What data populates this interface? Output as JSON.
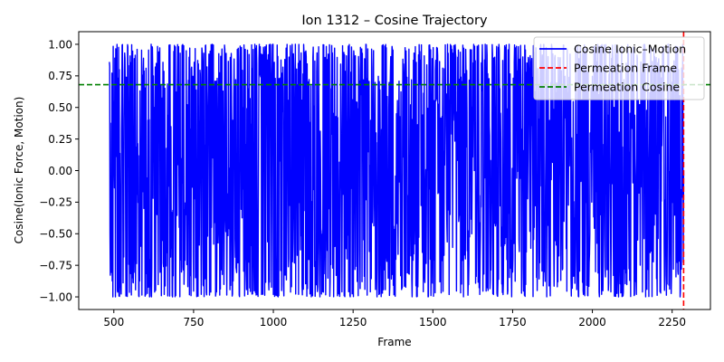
{
  "chart_data": {
    "type": "line",
    "title": "Ion 1312 – Cosine Trajectory",
    "xlabel": "Frame",
    "ylabel": "Cosine(Ionic Force, Motion)",
    "xlim": [
      390,
      2370
    ],
    "ylim": [
      -1.1,
      1.1
    ],
    "xticks": [
      500,
      750,
      1000,
      1250,
      1500,
      1750,
      2000,
      2250
    ],
    "xtick_labels": [
      "500",
      "750",
      "1000",
      "1250",
      "1500",
      "1750",
      "2000",
      "2250"
    ],
    "yticks": [
      -1.0,
      -0.75,
      -0.5,
      -0.25,
      0.0,
      0.25,
      0.5,
      0.75,
      1.0
    ],
    "ytick_labels": [
      "−1.00",
      "−0.75",
      "−0.50",
      "−0.25",
      "0.00",
      "0.25",
      "0.50",
      "0.75",
      "1.00"
    ],
    "grid": false,
    "legend_position": "top-right",
    "series": [
      {
        "name": "Cosine Ionic–Motion",
        "color": "#0000ff",
        "style": "solid",
        "x_start": 486,
        "x_end": 2286,
        "sampled_values": [
          0.86,
          -0.92,
          0.5,
          -0.3,
          0.82,
          -0.65,
          0.25,
          0.97,
          -0.98,
          0.1,
          -0.5,
          0.72,
          -0.85,
          0.35,
          1.0,
          -0.95,
          -0.2,
          0.6,
          -0.72,
          0.88,
          -0.4,
          0.15,
          -0.88,
          0.95,
          -0.1,
          0.45,
          -0.6,
          0.78,
          -0.99,
          0.3,
          0.99,
          -0.7,
          0.05,
          -0.35,
          0.65,
          -0.8,
          0.9,
          -0.45,
          0.2,
          -0.92,
          0.55,
          0.98,
          -0.25,
          -0.75,
          0.4,
          0.85,
          -0.55,
          0.0,
          -0.97,
          0.7
        ]
      }
    ],
    "reference_lines": [
      {
        "name": "Permeation Frame",
        "orientation": "vertical",
        "x": 2286,
        "color": "#ff0000",
        "style": "dashed"
      },
      {
        "name": "Permeation Cosine",
        "orientation": "horizontal",
        "y": 0.68,
        "color": "#008000",
        "style": "dashed"
      }
    ]
  }
}
